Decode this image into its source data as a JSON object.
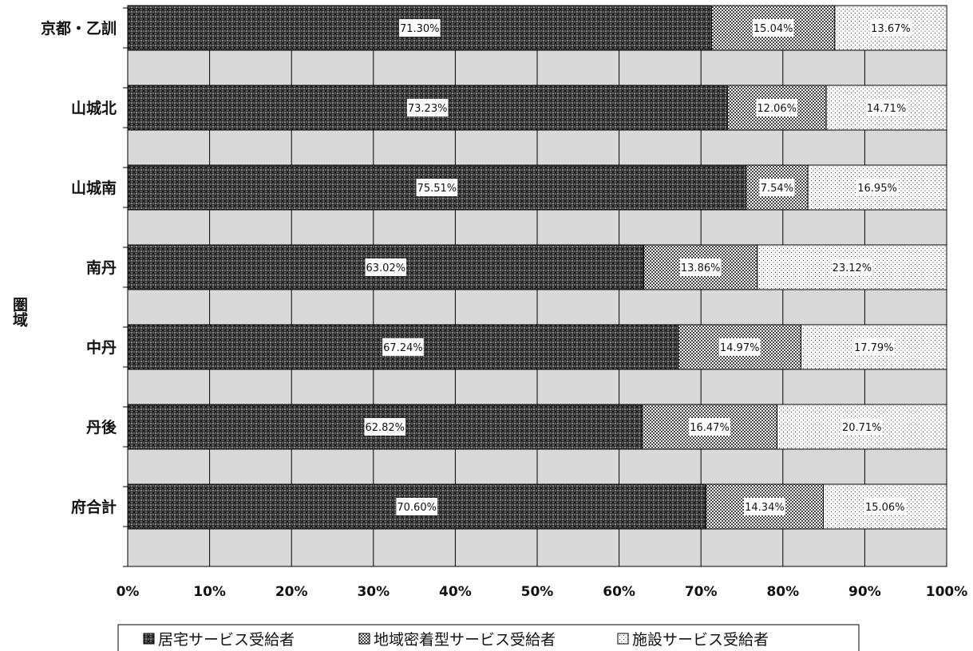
{
  "chart_data": {
    "type": "bar",
    "orientation": "horizontal",
    "stacked": "percent",
    "categories": [
      "京都・乙訓",
      "山城北",
      "山城南",
      "南丹",
      "中丹",
      "丹後",
      "府合計"
    ],
    "series": [
      {
        "name": "居宅サービス受給者",
        "values": [
          71.3,
          73.23,
          75.51,
          63.02,
          67.24,
          62.82,
          70.6
        ],
        "labels": [
          "71.30%",
          "73.23%",
          "75.51%",
          "63.02%",
          "67.24%",
          "62.82%",
          "70.60%"
        ]
      },
      {
        "name": "地域密着型サービス受給者",
        "values": [
          15.04,
          12.06,
          7.54,
          13.86,
          14.97,
          16.47,
          14.34
        ],
        "labels": [
          "15.04%",
          "12.06%",
          "7.54%",
          "13.86%",
          "14.97%",
          "16.47%",
          "14.34%"
        ]
      },
      {
        "name": "施設サービス受給者",
        "values": [
          13.67,
          14.71,
          16.95,
          23.12,
          17.79,
          20.71,
          15.06
        ],
        "labels": [
          "13.67%",
          "14.71%",
          "16.95%",
          "23.12%",
          "17.79%",
          "20.71%",
          "15.06%"
        ]
      }
    ],
    "xlim": [
      0,
      100
    ],
    "xticks": [
      "0%",
      "10%",
      "20%",
      "30%",
      "40%",
      "50%",
      "60%",
      "70%",
      "80%",
      "90%",
      "100%"
    ],
    "ylabel": "圏域",
    "legend_position": "bottom",
    "grid": true,
    "colors": {
      "plot_bg": "#d9d9d9",
      "grid": "#000000",
      "bar_border": "#000000",
      "label_bg": "#ffffff"
    },
    "patterns": [
      "dense-crosshatch-dark",
      "checker-medium",
      "sparse-dots"
    ]
  }
}
